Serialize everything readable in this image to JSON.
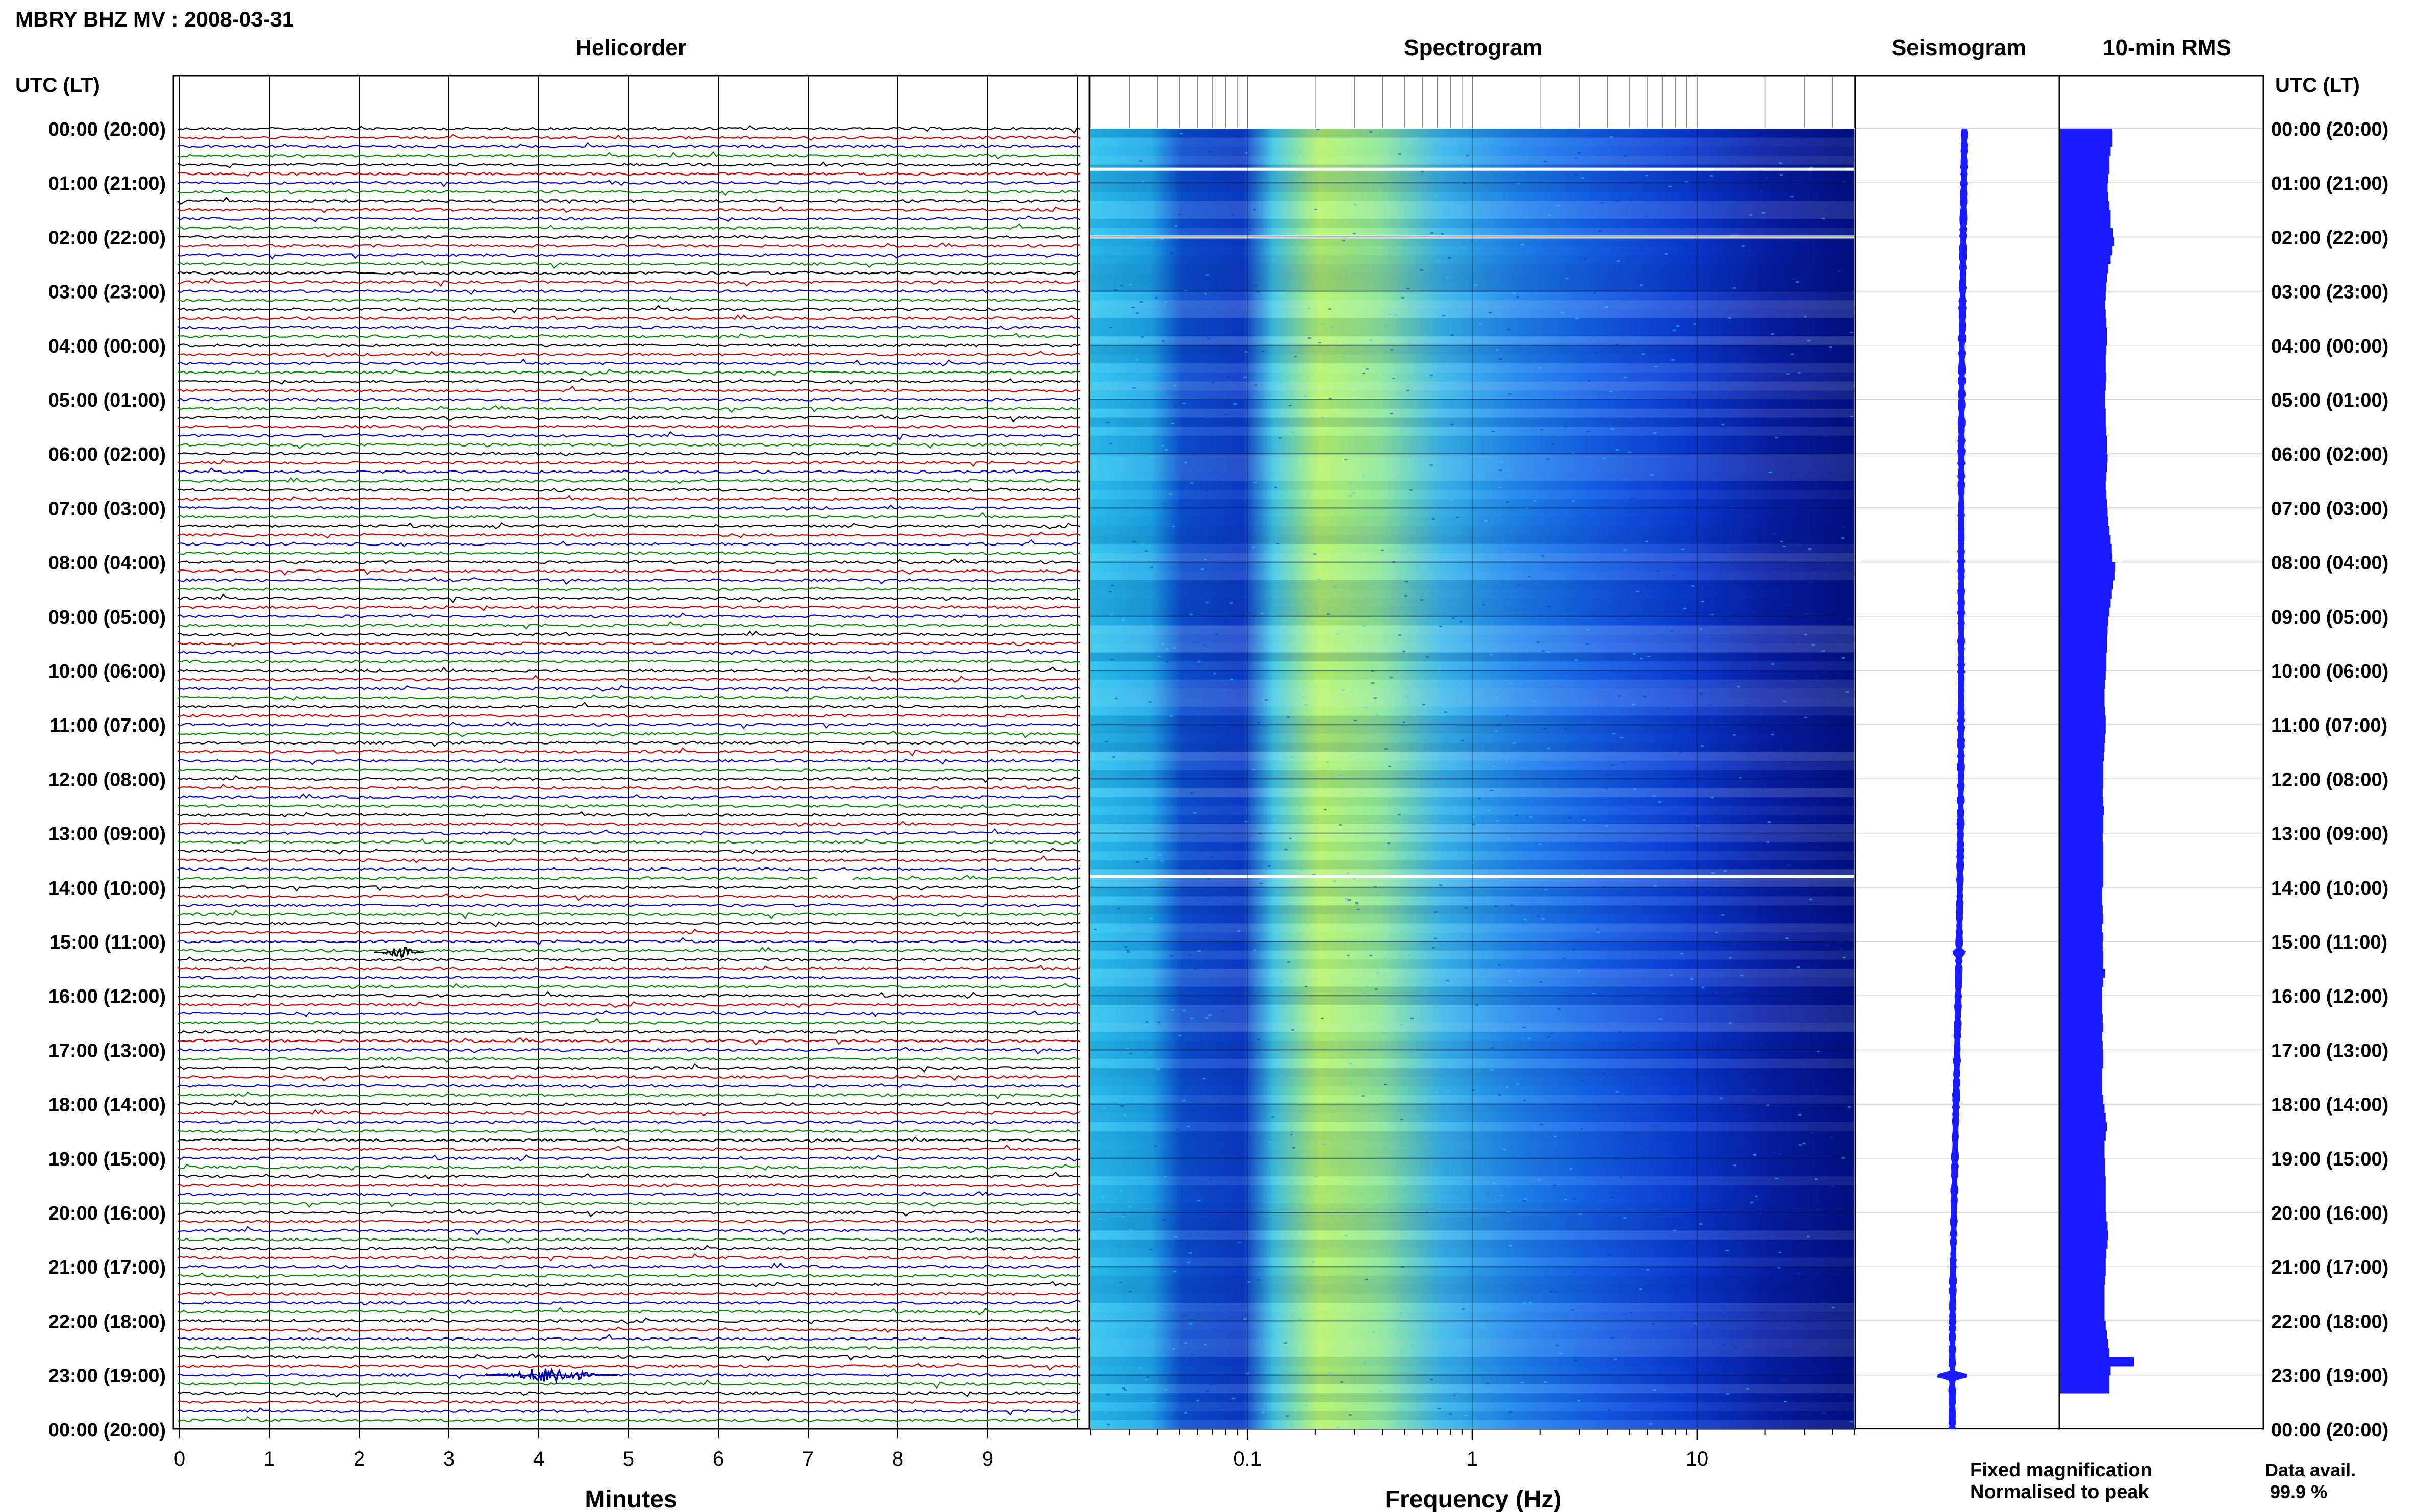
{
  "chart_data": {
    "type": "heatmap",
    "title": "MBRY BHZ MV : 2008-03-31",
    "panels": {
      "helicorder": "Helicorder",
      "spectrogram": "Spectrogram",
      "seismogram": "Seismogram",
      "rms": "10-min RMS"
    },
    "time_axis_label": "UTC (LT)",
    "time_ticks": [
      "00:00 (20:00)",
      "01:00 (21:00)",
      "02:00 (22:00)",
      "03:00 (23:00)",
      "04:00 (00:00)",
      "05:00 (01:00)",
      "06:00 (02:00)",
      "07:00 (03:00)",
      "08:00 (04:00)",
      "09:00 (05:00)",
      "10:00 (06:00)",
      "11:00 (07:00)",
      "12:00 (08:00)",
      "13:00 (09:00)",
      "14:00 (10:00)",
      "15:00 (11:00)",
      "16:00 (12:00)",
      "17:00 (13:00)",
      "18:00 (14:00)",
      "19:00 (15:00)",
      "20:00 (16:00)",
      "21:00 (17:00)",
      "22:00 (18:00)",
      "23:00 (19:00)",
      "00:00 (20:00)"
    ],
    "helicorder_x": {
      "label": "Minutes",
      "ticks": [
        "0",
        "1",
        "2",
        "3",
        "4",
        "5",
        "6",
        "7",
        "8",
        "9"
      ],
      "xlim": [
        0,
        10
      ]
    },
    "spectrogram_x": {
      "label": "Frequency (Hz)",
      "scale": "log",
      "ticks": [
        "0.1",
        "1",
        "10"
      ],
      "xlim": [
        0.02,
        50
      ]
    },
    "rms_values": [
      0.85,
      0.85,
      0.82,
      0.8,
      0.8,
      0.78,
      0.77,
      0.78,
      0.8,
      0.82,
      0.82,
      0.86,
      0.88,
      0.85,
      0.82,
      0.78,
      0.76,
      0.75,
      0.74,
      0.73,
      0.74,
      0.75,
      0.76,
      0.76,
      0.75,
      0.74,
      0.74,
      0.75,
      0.74,
      0.73,
      0.73,
      0.74,
      0.74,
      0.75,
      0.76,
      0.76,
      0.77,
      0.76,
      0.75,
      0.74,
      0.75,
      0.76,
      0.77,
      0.78,
      0.8,
      0.82,
      0.84,
      0.85,
      0.9,
      0.89,
      0.86,
      0.84,
      0.82,
      0.8,
      0.78,
      0.77,
      0.76,
      0.76,
      0.75,
      0.75,
      0.74,
      0.73,
      0.72,
      0.72,
      0.73,
      0.74,
      0.74,
      0.73,
      0.72,
      0.71,
      0.7,
      0.7,
      0.7,
      0.69,
      0.7,
      0.71,
      0.7,
      0.7,
      0.69,
      0.7,
      0.7,
      0.7,
      0.7,
      0.7,
      0.68,
      0.68,
      0.69,
      0.7,
      0.68,
      0.7,
      0.69,
      0.7,
      0.7,
      0.73,
      0.7,
      0.68,
      0.68,
      0.68,
      0.69,
      0.7,
      0.68,
      0.69,
      0.7,
      0.7,
      0.68,
      0.68,
      0.68,
      0.7,
      0.72,
      0.74,
      0.76,
      0.74,
      0.72,
      0.72,
      0.73,
      0.73,
      0.74,
      0.74,
      0.74,
      0.74,
      0.75,
      0.77,
      0.78,
      0.77,
      0.75,
      0.74,
      0.74,
      0.73,
      0.72,
      0.72,
      0.72,
      0.72,
      0.74,
      0.76,
      0.78,
      0.8,
      1.2,
      0.82,
      0.8,
      0.8
    ],
    "data_gaps_utc_hours": [
      0.75,
      2.0,
      13.8
    ],
    "legend": {
      "fixed": "Fixed magnification",
      "normalised": "Normalised to peak",
      "position": "bottom-right"
    },
    "availability": {
      "label": "Data avail.",
      "value": "99.9 %"
    },
    "colors": {
      "helicorder_lines": [
        "#000000",
        "#cc0000",
        "#0000cc",
        "#008800"
      ],
      "spectrogram_low": "#001080",
      "spectrogram_mid": "#1e90ff",
      "spectrogram_high": "#c8ff50",
      "seismogram": "#1a1aff",
      "rms": "#1a1aff",
      "legend_fixed": "#0000ff",
      "legend_normalised": "#ff0000"
    }
  }
}
